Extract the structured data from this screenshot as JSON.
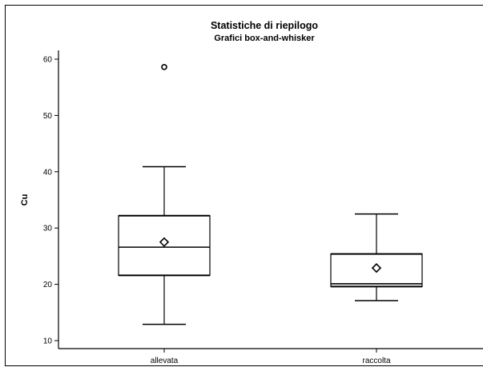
{
  "chart_data": {
    "type": "boxplot",
    "title": "Statistiche di riepilogo",
    "subtitle": "Grafici box-and-whisker",
    "xlabel": "",
    "ylabel": "Cu",
    "ylim": [
      9,
      62
    ],
    "yticks": [
      10,
      20,
      30,
      40,
      50,
      60
    ],
    "ytick_labels": [
      "10",
      "20",
      "30",
      "40",
      "50",
      "60"
    ],
    "grid": false,
    "categories": [
      "allevata",
      "raccolta"
    ],
    "boxes": [
      {
        "category": "allevata",
        "whisker_low": 12.9,
        "q1": 21.6,
        "median": 26.6,
        "q3": 32.2,
        "whisker_high": 40.9,
        "mean": 27.5,
        "outliers": [
          58.6
        ]
      },
      {
        "category": "raccolta",
        "whisker_low": 17.1,
        "q1": 19.6,
        "median": 20.1,
        "q3": 25.4,
        "whisker_high": 32.5,
        "mean": 22.9,
        "outliers": []
      }
    ]
  }
}
